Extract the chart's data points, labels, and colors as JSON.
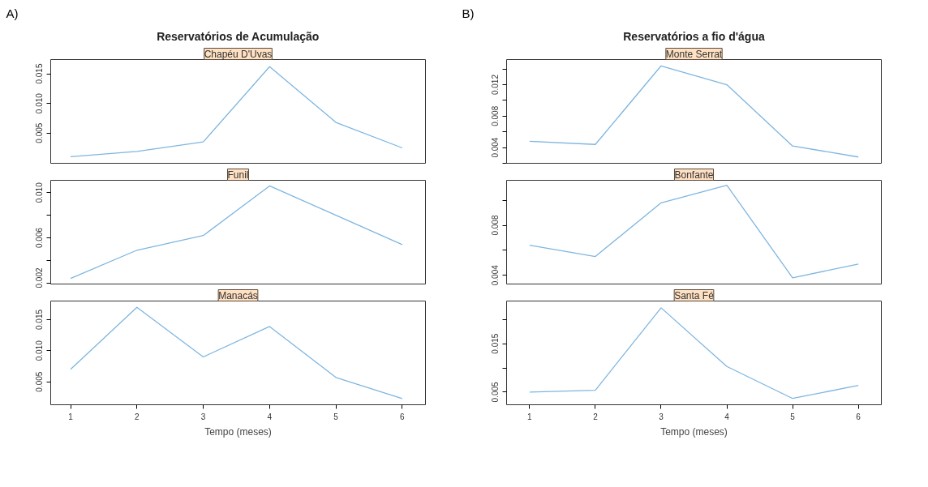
{
  "chart_data": [
    {
      "type": "line",
      "title": "Reservatórios de Acumulação",
      "subtitle": "Chapéu D'Uvas",
      "annotations": [
        "A)"
      ],
      "x": [
        1,
        2,
        3,
        4,
        5,
        6
      ],
      "values": [
        0.001,
        0.0019,
        0.0035,
        0.0162,
        0.0068,
        0.0025
      ],
      "color": "#7eb6e0",
      "xlim": [
        0.7,
        6.35
      ],
      "xticks": [
        1,
        2,
        3,
        4,
        5,
        6
      ],
      "ylim": [
        -0.0001,
        0.0174
      ],
      "yticks": [
        0.005,
        {
          "value": 0.01,
          "label": "0.010"
        },
        0.015
      ],
      "tick_labels": "y"
    },
    {
      "type": "line",
      "subtitle": "Funil",
      "x": [
        1,
        2,
        3,
        4,
        5,
        6
      ],
      "values": [
        0.0024,
        0.0049,
        0.0062,
        0.0106,
        0.008,
        0.0054
      ],
      "color": "#7eb6e0",
      "xlim": [
        0.7,
        6.35
      ],
      "xticks": [
        1,
        2,
        3,
        4,
        5,
        6
      ],
      "ylim": [
        0.0019,
        0.0111
      ],
      "yticks": [
        0.002,
        {
          "value": 0.004,
          "label": null
        },
        0.006,
        {
          "value": 0.008,
          "label": null
        },
        {
          "value": 0.01,
          "label": "0.010"
        }
      ],
      "tick_labels": "y"
    },
    {
      "type": "line",
      "subtitle": "Manacás",
      "xlabel": "Tempo (meses)",
      "x": [
        1,
        2,
        3,
        4,
        5,
        6
      ],
      "values": [
        0.007,
        0.017,
        0.009,
        0.0139,
        0.0057,
        0.0023
      ],
      "color": "#7eb6e0",
      "xlim": [
        0.7,
        6.35
      ],
      "xticks": [
        1,
        2,
        3,
        4,
        5,
        6
      ],
      "ylim": [
        0.0013,
        0.018
      ],
      "yticks": [
        0.005,
        {
          "value": 0.01,
          "label": "0.010"
        },
        0.015
      ]
    },
    {
      "type": "line",
      "title": "Reservatórios a fio d'água",
      "subtitle": "Monte Serrat",
      "annotations": [
        "B)"
      ],
      "x": [
        1,
        2,
        3,
        4,
        5,
        6
      ],
      "values": [
        0.0048,
        0.0044,
        0.0144,
        0.012,
        0.0042,
        0.0028
      ],
      "color": "#7eb6e0",
      "xlim": [
        0.65,
        6.35
      ],
      "xticks": [
        1,
        2,
        3,
        4,
        5,
        6
      ],
      "ylim": [
        0.002,
        0.0152
      ],
      "yticks": [
        {
          "value": 0.002,
          "label": null
        },
        0.004,
        {
          "value": 0.006,
          "label": null
        },
        0.008,
        {
          "value": 0.01,
          "label": null
        },
        0.012,
        {
          "value": 0.014,
          "label": null
        }
      ],
      "tick_labels": "y"
    },
    {
      "type": "line",
      "subtitle": "Bonfante",
      "x": [
        1,
        2,
        3,
        4,
        5,
        6
      ],
      "values": [
        0.0064,
        0.0055,
        0.0098,
        0.0112,
        0.0038,
        0.0049
      ],
      "color": "#7eb6e0",
      "xlim": [
        0.65,
        6.35
      ],
      "xticks": [
        1,
        2,
        3,
        4,
        5,
        6
      ],
      "ylim": [
        0.0033,
        0.0116
      ],
      "yticks": [
        0.004,
        {
          "value": 0.006,
          "label": null
        },
        0.008,
        {
          "value": 0.01,
          "label": null
        }
      ],
      "tick_labels": "y"
    },
    {
      "type": "line",
      "subtitle": "Santa Fé",
      "xlabel": "Tempo (meses)",
      "x": [
        1,
        2,
        3,
        4,
        5,
        6
      ],
      "values": [
        0.005,
        0.0054,
        0.0224,
        0.0103,
        0.0037,
        0.0064
      ],
      "color": "#7eb6e0",
      "xlim": [
        0.65,
        6.35
      ],
      "xticks": [
        1,
        2,
        3,
        4,
        5,
        6
      ],
      "ylim": [
        0.0024,
        0.0238
      ],
      "yticks": [
        0.005,
        {
          "value": 0.01,
          "label": null
        },
        0.015,
        {
          "value": 0.02,
          "label": null
        }
      ]
    }
  ]
}
